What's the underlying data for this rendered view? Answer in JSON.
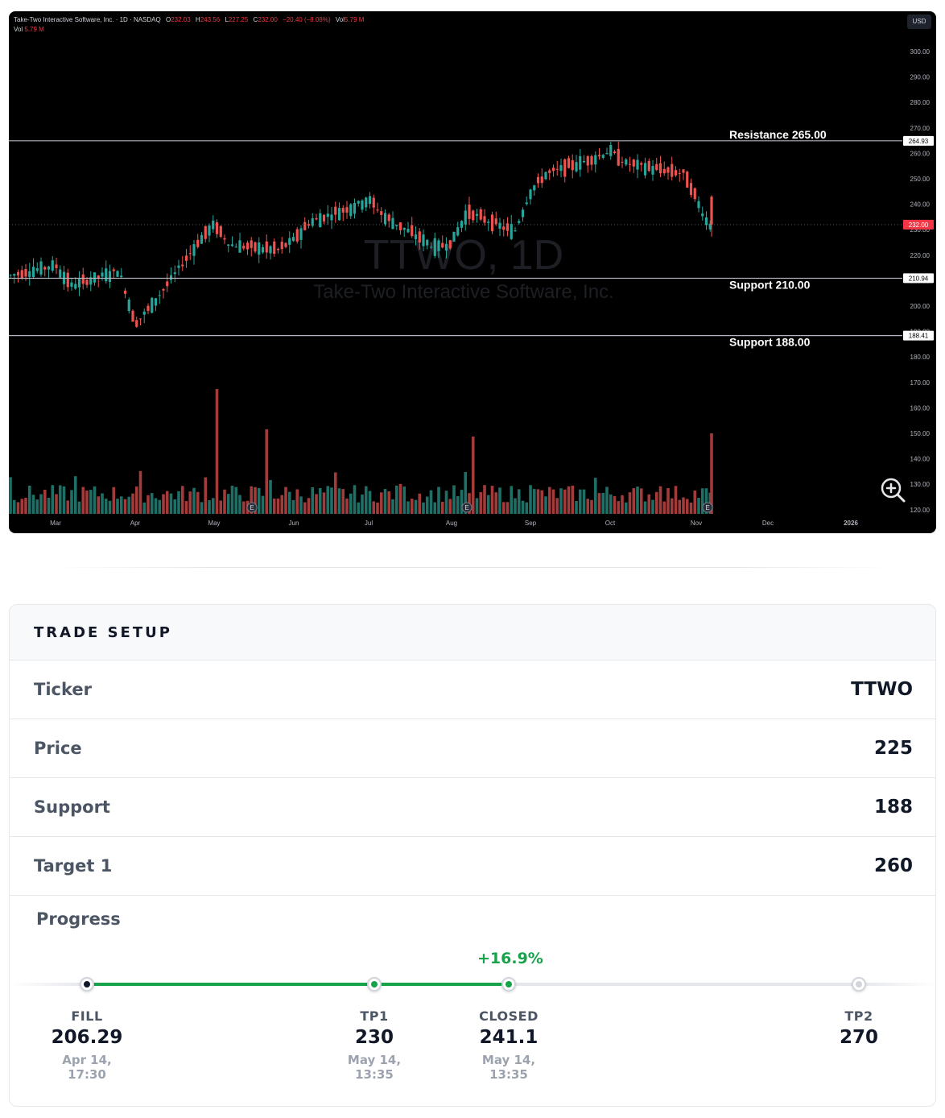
{
  "chart": {
    "legend": {
      "symbol_line": "Take-Two Interactive Software, Inc. · 1D · NASDAQ",
      "open_label": "O",
      "open": "232.03",
      "high_label": "H",
      "high": "243.56",
      "low_label": "L",
      "low": "227.25",
      "close_label": "C",
      "close": "232.00",
      "change": "−20.40 (−8.08%)",
      "vol_label": "Vol",
      "vol": "5.79 M",
      "vol2_label": "Vol",
      "vol2": "5.79 M"
    },
    "currency": "USD",
    "watermark_ticker": "TTWO, 1D",
    "watermark_name": "Take-Two Interactive Software, Inc.",
    "x_labels": [
      "Mar",
      "Apr",
      "May",
      "Jun",
      "Jul",
      "Aug",
      "Sep",
      "Oct",
      "Nov",
      "Dec",
      "2026"
    ],
    "y_labels": [
      "300.00",
      "290.00",
      "280.00",
      "270.00",
      "260.00",
      "250.00",
      "240.00",
      "230.00",
      "220.00",
      "210.00",
      "200.00",
      "190.00",
      "180.00",
      "170.00",
      "160.00",
      "150.00",
      "140.00",
      "130.00",
      "120.00"
    ],
    "levels": [
      {
        "label": "Resistance 265.00",
        "tag": "264.93",
        "price": 264.93
      },
      {
        "label": "Support 210.00",
        "tag": "210.94",
        "price": 210.94
      },
      {
        "label": "Support 188.00",
        "tag": "188.41",
        "price": 188.41
      }
    ],
    "last_price_tag": "232.00",
    "last_price": 232.0,
    "earnings_marker": "E",
    "colors": {
      "up": "#26a69a",
      "down": "#ef5350",
      "level": "#b2b5be",
      "last": "#f23645"
    }
  },
  "chart_data": {
    "type": "candlestick",
    "title": "Take-Two Interactive Software, Inc. · 1D · NASDAQ",
    "y_range": [
      120,
      300
    ],
    "x_categories": [
      "Mar",
      "Apr",
      "May",
      "Jun",
      "Jul",
      "Aug",
      "Sep",
      "Oct",
      "Nov",
      "Dec",
      "2026"
    ],
    "price_path": [
      [
        "Mar",
        212
      ],
      [
        "Mar",
        216
      ],
      [
        "Mar",
        208
      ],
      [
        "Apr",
        214
      ],
      [
        "Apr",
        193
      ],
      [
        "Apr",
        200
      ],
      [
        "May",
        225
      ],
      [
        "May",
        232
      ],
      [
        "May",
        224
      ],
      [
        "Jun",
        222
      ],
      [
        "Jun",
        226
      ],
      [
        "Jun",
        233
      ],
      [
        "Jul",
        239
      ],
      [
        "Jul",
        242
      ],
      [
        "Jul",
        235
      ],
      [
        "Aug",
        223
      ],
      [
        "Aug",
        225
      ],
      [
        "Aug",
        237
      ],
      [
        "Sep",
        229
      ],
      [
        "Sep",
        245
      ],
      [
        "Sep",
        252
      ],
      [
        "Oct",
        258
      ],
      [
        "Oct",
        261
      ],
      [
        "Oct",
        256
      ],
      [
        "Nov",
        252
      ],
      [
        "Nov",
        232
      ]
    ],
    "last_close": 232.0,
    "levels": [
      265.0,
      210.0,
      188.0
    ]
  },
  "trade": {
    "title": "TRADE SETUP",
    "rows": [
      {
        "label": "Ticker",
        "value": "TTWO"
      },
      {
        "label": "Price",
        "value": "225"
      },
      {
        "label": "Support",
        "value": "188"
      },
      {
        "label": "Target 1",
        "value": "260"
      }
    ],
    "progress_label": "Progress",
    "gain": "+16.9%",
    "progress_fraction": 0.55,
    "stops": [
      {
        "label": "FILL",
        "value": "206.29",
        "time1": "Apr 14,",
        "time2": "17:30",
        "color": "#111827"
      },
      {
        "label": "TP1",
        "value": "230",
        "time1": "May 14,",
        "time2": "13:35",
        "color": "#16a34a"
      },
      {
        "label": "CLOSED",
        "value": "241.1",
        "time1": "May 14,",
        "time2": "13:35",
        "color": "#16a34a"
      },
      {
        "label": "TP2",
        "value": "270",
        "time1": "",
        "time2": "",
        "color": "#d1d5db"
      }
    ]
  }
}
